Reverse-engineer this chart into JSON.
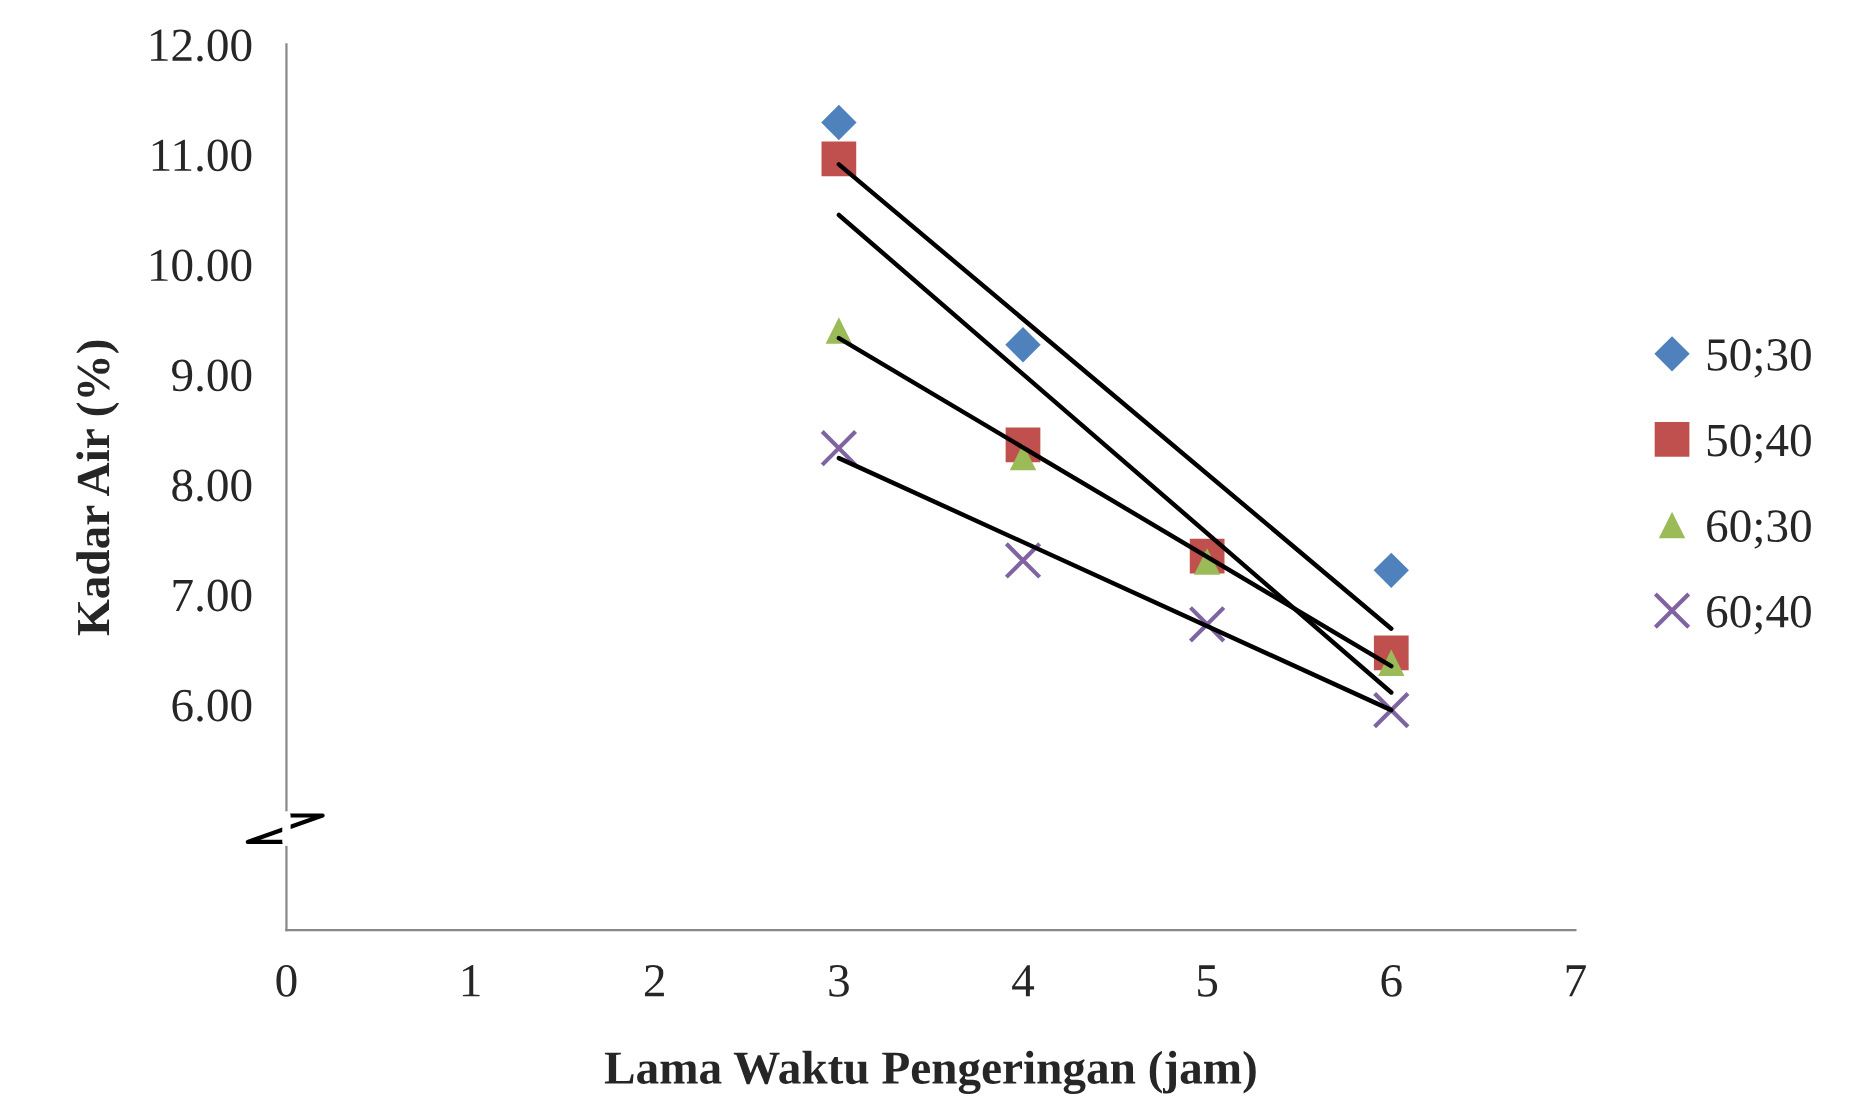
{
  "chart_data": {
    "type": "scatter",
    "xlabel": "Lama Waktu Pengeringan (jam)",
    "ylabel": "Kadar Air (%)",
    "xlim": [
      0,
      7
    ],
    "xticks": [
      0,
      1,
      2,
      3,
      4,
      5,
      6,
      7
    ],
    "ylim": [
      3.95,
      12
    ],
    "yticks": [
      {
        "value": 6,
        "label": "6.00"
      },
      {
        "value": 7,
        "label": "7.00"
      },
      {
        "value": 8,
        "label": "8.00"
      },
      {
        "value": 9,
        "label": "9.00"
      },
      {
        "value": 10,
        "label": "10.00"
      },
      {
        "value": 11,
        "label": "11.00"
      },
      {
        "value": 12,
        "label": "12.00"
      }
    ],
    "grid": false,
    "legend": "right",
    "series": [
      {
        "name": "50;30",
        "color": "#4f81bd",
        "marker": "diamond",
        "x": [
          3,
          4,
          5,
          6
        ],
        "values": [
          11.29,
          9.27,
          null,
          7.22
        ]
      },
      {
        "name": "50;40",
        "color": "#c0504d",
        "marker": "square",
        "x": [
          3,
          4,
          5,
          6
        ],
        "values": [
          10.96,
          8.36,
          7.35,
          6.47
        ]
      },
      {
        "name": "60;30",
        "color": "#9bbb59",
        "marker": "triangle",
        "x": [
          3,
          4,
          5,
          6
        ],
        "values": [
          9.4,
          8.25,
          7.3,
          6.38
        ]
      },
      {
        "name": "60;40",
        "color": "#8064a2",
        "marker": "cross",
        "x": [
          3,
          4,
          5,
          6
        ],
        "values": [
          8.33,
          7.31,
          6.73,
          5.95
        ]
      },
      {
        "type": "line",
        "color": "#000000",
        "x": [
          3,
          6
        ],
        "values": [
          10.91,
          6.69
        ]
      },
      {
        "type": "line",
        "color": "#000000",
        "x": [
          3,
          6
        ],
        "values": [
          10.45,
          6.11
        ]
      },
      {
        "type": "line",
        "color": "#000000",
        "x": [
          3,
          6
        ],
        "values": [
          9.33,
          6.35
        ]
      },
      {
        "type": "line",
        "color": "#000000",
        "x": [
          3,
          6
        ],
        "values": [
          8.24,
          5.95
        ]
      }
    ]
  }
}
